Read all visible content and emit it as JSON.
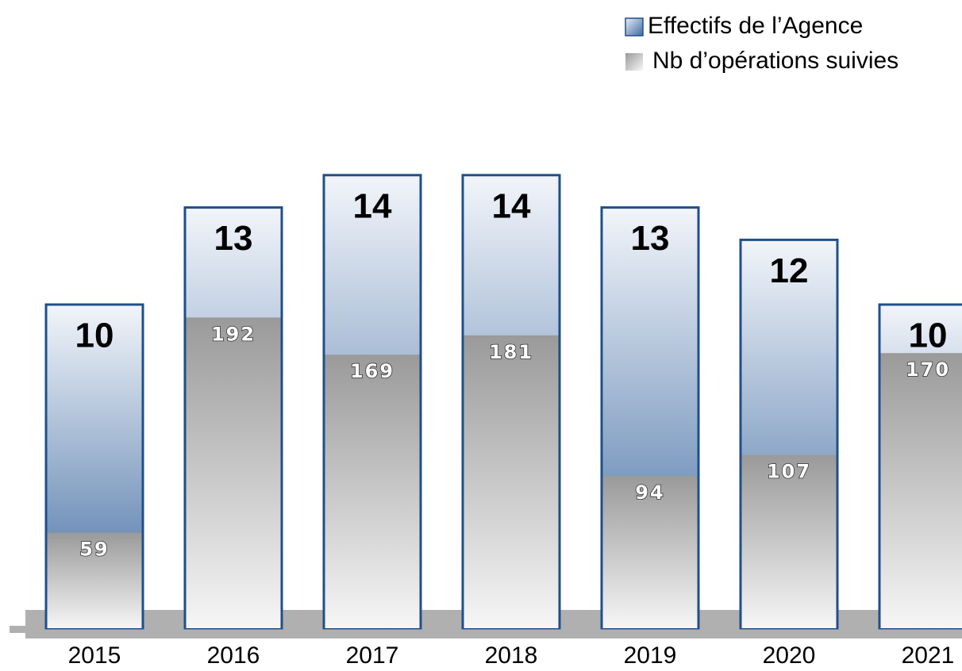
{
  "chart_data": {
    "type": "bar",
    "categories": [
      "2015",
      "2016",
      "2017",
      "2018",
      "2019",
      "2020",
      "2021"
    ],
    "series": [
      {
        "name": "Effectifs de l’Agence",
        "color": "#3e6aa0",
        "values": [
          10,
          13,
          14,
          14,
          13,
          12,
          10
        ]
      },
      {
        "name": "Nb d’opérations suivies",
        "color": "#9a9a9a",
        "axis": "y2",
        "values": [
          59,
          192,
          169,
          181,
          94,
          107,
          170
        ]
      }
    ],
    "ylim": [
      0,
      15
    ],
    "y2lim": [
      0,
      300
    ],
    "legend": "top-right"
  }
}
